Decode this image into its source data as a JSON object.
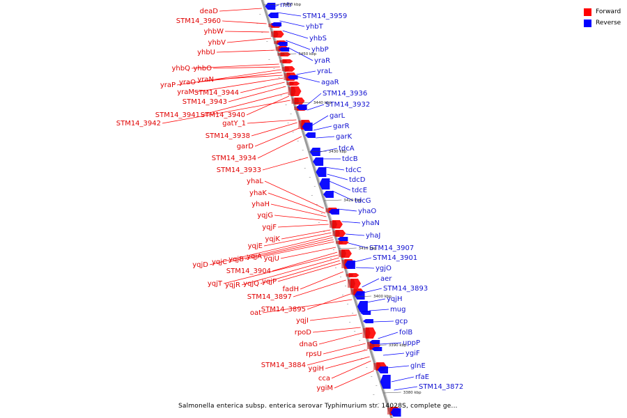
{
  "caption": "Salmonella enterica subsp. enterica serovar Typhimurium str. 14028S, complete ge...",
  "legend": [
    {
      "label": "Forward",
      "color": "#ff0000"
    },
    {
      "label": "Reverse",
      "color": "#0000ff"
    }
  ],
  "colors": {
    "forward": "#ff0000",
    "reverse": "#0000ff",
    "backbone": "#9a9a9a"
  },
  "ticks": [
    "3460 kbp",
    "3450 kbp",
    "3440 kbp",
    "3430 kbp",
    "3420 kbp",
    "3410 kbp",
    "3400 kbp",
    "3390 kbp",
    "3380 kbp"
  ],
  "forward_genes": [
    "deaD",
    "STM14_3960",
    "yhbW",
    "yhbV",
    "yhbU",
    "yhbQ",
    "yhbO",
    "yraP",
    "yraO",
    "yraN",
    "yraM",
    "STM14_3944",
    "STM14_3943",
    "STM14_3941",
    "STM14_3940",
    "STM14_3942",
    "gatY_1",
    "STM14_3938",
    "garD",
    "STM14_3934",
    "STM14_3933",
    "yhaL",
    "yhaK",
    "yhaH",
    "yqjG",
    "yqjF",
    "yqjK",
    "yqjE",
    "yqjD",
    "yqjC",
    "yqjB",
    "yqjA",
    "yqjU",
    "STM14_3904",
    "yqjT",
    "yqjR",
    "yqjQ",
    "yqjP",
    "fadH",
    "STM14_3897",
    "oat",
    "STM14_3895",
    "yqjI",
    "rpoD",
    "dnaG",
    "rpsU",
    "STM14_3884",
    "ygiH",
    "cca",
    "ygiM"
  ],
  "reverse_genes": [
    "mtr",
    "STM14_3959",
    "yhbT",
    "yhbS",
    "yhbP",
    "yraR",
    "yraL",
    "agaR",
    "STM14_3936",
    "STM14_3932",
    "garL",
    "garR",
    "garK",
    "tdcA",
    "tdcB",
    "tdcC",
    "tdcD",
    "tdcE",
    "tdcG",
    "yhaO",
    "yhaN",
    "yhaJ",
    "STM14_3907",
    "STM14_3901",
    "ygjO",
    "aer",
    "STM14_3893",
    "yqjH",
    "mug",
    "gcp",
    "folB",
    "uppP",
    "ygiF",
    "glnE",
    "rfaE",
    "STM14_3872"
  ]
}
